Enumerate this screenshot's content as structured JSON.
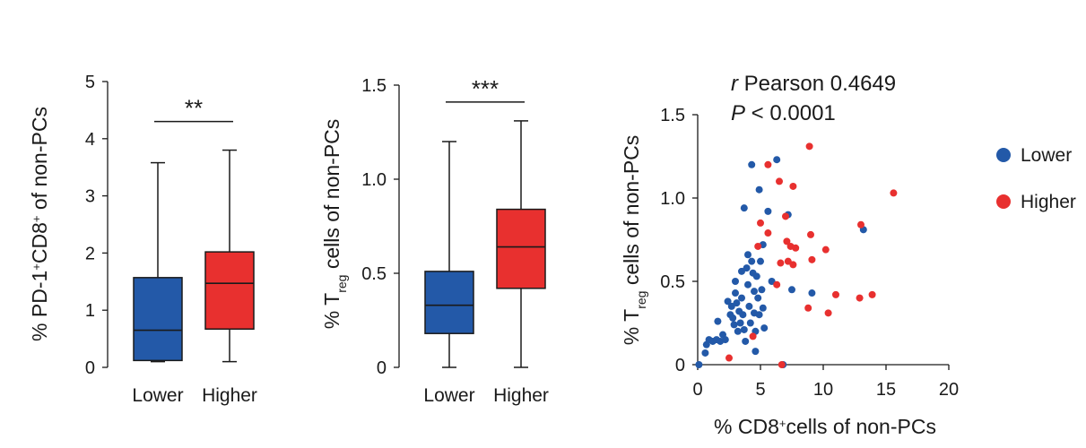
{
  "colors": {
    "lower": "#2359a8",
    "higher": "#e8302f",
    "axis": "#1a1a1a"
  },
  "chart_data": [
    {
      "type": "box",
      "ylabel": "% PD-1⁺CD8⁺ of non-PCs",
      "ylabel_parts": {
        "pre": "% PD-1",
        "sup1": "+",
        "mid": "CD8",
        "sup2": "+",
        "post": " of non-PCs"
      },
      "ylim": [
        0,
        5
      ],
      "yticks": [
        "0",
        "1",
        "2",
        "3",
        "4",
        "5"
      ],
      "categories": [
        "Lower",
        "Higher"
      ],
      "boxes": [
        {
          "group": "Lower",
          "min": 0.1,
          "q1": 0.12,
          "median": 0.65,
          "q3": 1.57,
          "max": 3.58
        },
        {
          "group": "Higher",
          "min": 0.1,
          "q1": 0.67,
          "median": 1.47,
          "q3": 2.02,
          "max": 3.8
        }
      ],
      "significance": {
        "label": "**",
        "level": 4.3
      }
    },
    {
      "type": "box",
      "ylabel": "% Treg cells of non-PCs",
      "ylabel_parts": {
        "pre": "% T",
        "sub": "reg",
        "post": " cells of non-PCs"
      },
      "ylim": [
        0,
        1.5
      ],
      "yticks": [
        "0",
        "0.5",
        "1.0",
        "1.5"
      ],
      "categories": [
        "Lower",
        "Higher"
      ],
      "boxes": [
        {
          "group": "Lower",
          "min": 0.0,
          "q1": 0.18,
          "median": 0.33,
          "q3": 0.51,
          "max": 1.2
        },
        {
          "group": "Higher",
          "min": 0.0,
          "q1": 0.42,
          "median": 0.64,
          "q3": 0.84,
          "max": 1.31
        }
      ],
      "significance": {
        "label": "***",
        "level": 1.41
      }
    },
    {
      "type": "scatter",
      "xlabel": "% CD8⁺cells of non-PCs",
      "xlabel_parts": {
        "pre": "% CD8",
        "sup": "+",
        "post": "cells of non-PCs"
      },
      "ylabel": "% Treg cells of non-PCs",
      "ylabel_parts": {
        "pre": "% T",
        "sub": "reg",
        "post": " cells of non-PCs"
      },
      "xlim": [
        0,
        20
      ],
      "ylim": [
        0,
        1.5
      ],
      "xticks": [
        "0",
        "5",
        "10",
        "15",
        "20"
      ],
      "yticks": [
        "0",
        "0.5",
        "1.0",
        "1.5"
      ],
      "stats": {
        "r_symbol": "r",
        "r_text": " Pearson 0.4649",
        "p_symbol": "P",
        "p_text": " < 0.0001"
      },
      "legend": [
        {
          "name": "Lower",
          "color": "#2359a8"
        },
        {
          "name": "Higher",
          "color": "#e8302f"
        }
      ],
      "series": [
        {
          "name": "Lower",
          "points": [
            [
              0.1,
              0.0
            ],
            [
              0.6,
              0.07
            ],
            [
              0.7,
              0.12
            ],
            [
              0.9,
              0.15
            ],
            [
              1.2,
              0.14
            ],
            [
              1.5,
              0.15
            ],
            [
              1.6,
              0.26
            ],
            [
              1.8,
              0.14
            ],
            [
              2.0,
              0.18
            ],
            [
              2.2,
              0.15
            ],
            [
              2.4,
              0.38
            ],
            [
              2.6,
              0.3
            ],
            [
              2.7,
              0.35
            ],
            [
              2.8,
              0.28
            ],
            [
              2.9,
              0.24
            ],
            [
              3.0,
              0.43
            ],
            [
              3.0,
              0.5
            ],
            [
              3.1,
              0.37
            ],
            [
              3.2,
              0.2
            ],
            [
              3.3,
              0.32
            ],
            [
              3.4,
              0.25
            ],
            [
              3.5,
              0.4
            ],
            [
              3.5,
              0.56
            ],
            [
              3.6,
              0.3
            ],
            [
              3.7,
              0.21
            ],
            [
              3.8,
              0.14
            ],
            [
              3.9,
              0.58
            ],
            [
              4.0,
              0.66
            ],
            [
              4.0,
              0.48
            ],
            [
              4.1,
              0.35
            ],
            [
              4.2,
              0.25
            ],
            [
              4.3,
              0.62
            ],
            [
              4.4,
              0.55
            ],
            [
              4.5,
              0.44
            ],
            [
              4.5,
              0.31
            ],
            [
              4.6,
              0.2
            ],
            [
              4.6,
              0.08
            ],
            [
              4.7,
              0.53
            ],
            [
              4.8,
              0.4
            ],
            [
              4.9,
              0.3
            ],
            [
              5.0,
              0.62
            ],
            [
              5.1,
              0.45
            ],
            [
              5.2,
              0.34
            ],
            [
              5.3,
              0.22
            ],
            [
              3.7,
              0.94
            ],
            [
              4.3,
              1.2
            ],
            [
              4.9,
              1.05
            ],
            [
              5.2,
              0.72
            ],
            [
              5.6,
              0.92
            ],
            [
              5.9,
              0.5
            ],
            [
              6.3,
              1.23
            ],
            [
              6.8,
              0.0
            ],
            [
              7.2,
              0.9
            ],
            [
              7.5,
              0.45
            ],
            [
              9.1,
              0.43
            ],
            [
              13.2,
              0.81
            ]
          ]
        },
        {
          "name": "Higher",
          "points": [
            [
              2.5,
              0.04
            ],
            [
              4.4,
              0.17
            ],
            [
              4.8,
              0.71
            ],
            [
              5.0,
              0.85
            ],
            [
              5.6,
              1.2
            ],
            [
              5.6,
              0.79
            ],
            [
              6.3,
              0.48
            ],
            [
              6.5,
              1.1
            ],
            [
              6.6,
              0.61
            ],
            [
              6.7,
              0.0
            ],
            [
              7.0,
              0.89
            ],
            [
              7.1,
              0.74
            ],
            [
              7.2,
              0.62
            ],
            [
              7.4,
              0.71
            ],
            [
              7.6,
              1.07
            ],
            [
              7.6,
              0.6
            ],
            [
              7.8,
              0.7
            ],
            [
              8.8,
              0.34
            ],
            [
              8.9,
              1.31
            ],
            [
              9.0,
              0.78
            ],
            [
              9.1,
              0.63
            ],
            [
              10.2,
              0.69
            ],
            [
              10.4,
              0.31
            ],
            [
              11.0,
              0.42
            ],
            [
              12.9,
              0.4
            ],
            [
              13.0,
              0.84
            ],
            [
              13.9,
              0.42
            ],
            [
              15.6,
              1.03
            ]
          ]
        }
      ]
    }
  ]
}
